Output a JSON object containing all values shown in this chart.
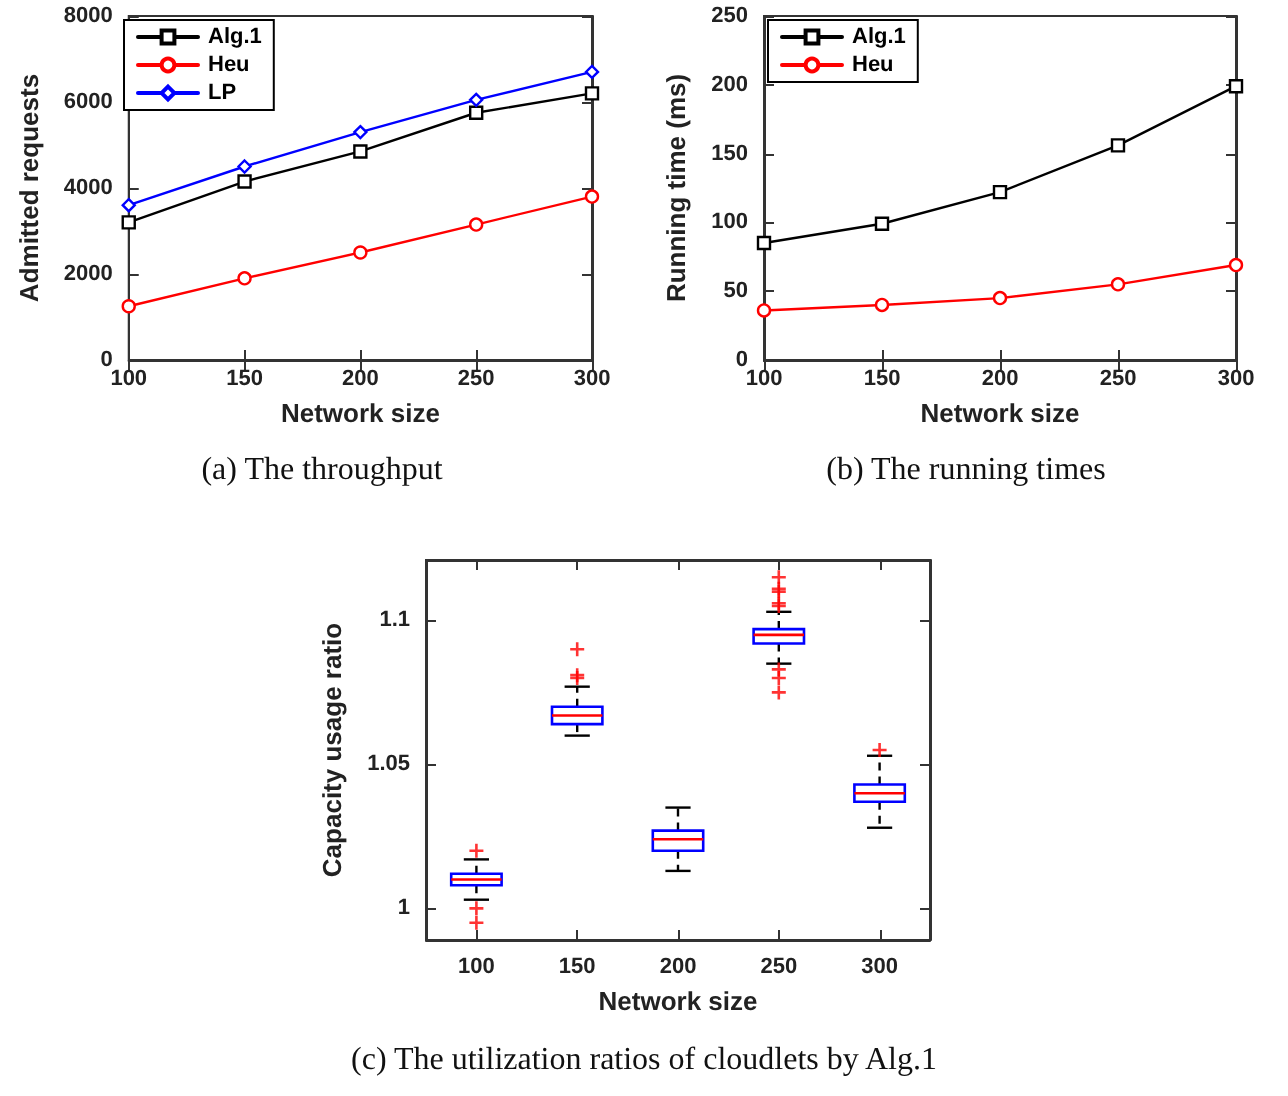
{
  "chart_data": [
    {
      "type": "line",
      "title": "(a) The throughput",
      "xlabel": "Network size",
      "ylabel": "Admitted requests",
      "x": [
        100,
        150,
        200,
        250,
        300
      ],
      "xlim": [
        100,
        300
      ],
      "xticks": [
        100,
        150,
        200,
        250,
        300
      ],
      "ylim": [
        0,
        8000
      ],
      "yticks": [
        0,
        2000,
        4000,
        6000,
        8000
      ],
      "grid": false,
      "legend": "top left",
      "series": [
        {
          "name": "Alg.1",
          "color": "#000000",
          "marker": "square",
          "values": [
            3200,
            4150,
            4850,
            5750,
            6200
          ]
        },
        {
          "name": "Heu",
          "color": "#ff0000",
          "marker": "circle",
          "values": [
            1250,
            1900,
            2500,
            3150,
            3800
          ]
        },
        {
          "name": "LP",
          "color": "#0000ff",
          "marker": "diamond",
          "values": [
            3600,
            4500,
            5300,
            6050,
            6700
          ]
        }
      ]
    },
    {
      "type": "line",
      "title": "(b) The running times",
      "xlabel": "Network size",
      "ylabel": "Running time (ms)",
      "x": [
        100,
        150,
        200,
        250,
        300
      ],
      "xlim": [
        100,
        300
      ],
      "xticks": [
        100,
        150,
        200,
        250,
        300
      ],
      "ylim": [
        0,
        250
      ],
      "yticks": [
        0,
        50,
        100,
        150,
        200,
        250
      ],
      "grid": false,
      "legend": "top left",
      "series": [
        {
          "name": "Alg.1",
          "color": "#000000",
          "marker": "square",
          "values": [
            85,
            99,
            122,
            156,
            199
          ]
        },
        {
          "name": "Heu",
          "color": "#ff0000",
          "marker": "circle",
          "values": [
            36,
            40,
            45,
            55,
            69
          ]
        }
      ]
    },
    {
      "type": "box",
      "title": "(c) The utilization ratios of cloudlets by Alg.1",
      "xlabel": "Network size",
      "ylabel": "Capacity usage ratio",
      "categories": [
        "100",
        "150",
        "200",
        "250",
        "300"
      ],
      "ylim": [
        0.989,
        1.121
      ],
      "yticks": [
        1,
        1.05,
        1.1
      ],
      "grid": false,
      "series": [
        {
          "color": "#0000ff",
          "boxes": [
            {
              "low": 1.003,
              "q1": 1.008,
              "median": 1.01,
              "q3": 1.012,
              "high": 1.017,
              "outliers": [
                1.02,
                1.0,
                0.995
              ]
            },
            {
              "low": 1.06,
              "q1": 1.064,
              "median": 1.067,
              "q3": 1.07,
              "high": 1.077,
              "outliers": [
                1.08,
                1.081,
                1.09
              ]
            },
            {
              "low": 1.013,
              "q1": 1.02,
              "median": 1.024,
              "q3": 1.027,
              "high": 1.035
            },
            {
              "low": 1.085,
              "q1": 1.092,
              "median": 1.095,
              "q3": 1.097,
              "high": 1.103,
              "outliers": [
                1.105,
                1.106,
                1.11,
                1.111,
                1.115,
                1.083,
                1.08,
                1.075
              ]
            },
            {
              "low": 1.028,
              "q1": 1.037,
              "median": 1.04,
              "q3": 1.043,
              "high": 1.053,
              "outliers": [
                1.055
              ]
            }
          ]
        }
      ]
    }
  ]
}
